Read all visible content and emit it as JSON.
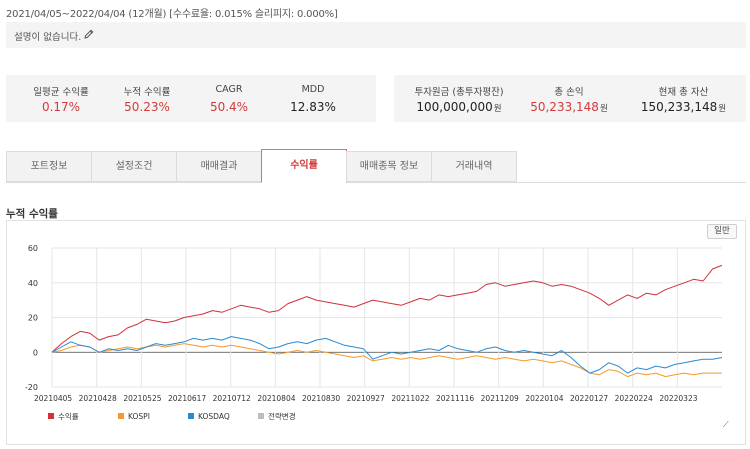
{
  "header": {
    "period": "2021/04/05~2022/04/04 (12개월) [수수료율: 0.015% 슬리피지: 0.000%]",
    "description": "설명이 없습니다.",
    "edit_icon": "pencil-icon"
  },
  "stats_left": [
    {
      "label": "일평균 수익률",
      "value": "0.17%",
      "color": "#d33a3a"
    },
    {
      "label": "누적 수익률",
      "value": "50.23%",
      "color": "#d33a3a"
    },
    {
      "label": "CAGR",
      "value": "50.4%",
      "color": "#d33a3a"
    },
    {
      "label": "MDD",
      "value": "12.83%",
      "color": "#222222"
    }
  ],
  "stats_right": [
    {
      "label": "투자원금 (총투자평잔)",
      "value": "100,000,000",
      "unit": "원",
      "color": "#222222"
    },
    {
      "label": "총 손익",
      "value": "50,233,148",
      "unit": "원",
      "color": "#d33a3a"
    },
    {
      "label": "현재 총 자산",
      "value": "150,233,148",
      "unit": "원",
      "color": "#222222"
    }
  ],
  "tabs": [
    {
      "label": "포트정보",
      "active": false
    },
    {
      "label": "설정조건",
      "active": false
    },
    {
      "label": "매매결과",
      "active": false
    },
    {
      "label": "수익률",
      "active": true
    },
    {
      "label": "매매종목 정보",
      "active": false
    },
    {
      "label": "거래내역",
      "active": false
    }
  ],
  "section_title": "누적 수익률",
  "reset_button": "일반",
  "chart_data": {
    "type": "line",
    "title": "",
    "xlabel": "",
    "ylabel": "",
    "ylim": [
      -20,
      60
    ],
    "yticks": [
      60,
      40,
      20,
      0,
      -20
    ],
    "x_tick_labels": [
      "20210405",
      "20210428",
      "20210525",
      "20210617",
      "20210712",
      "20210804",
      "20210830",
      "20210927",
      "20211022",
      "20211116",
      "20211209",
      "20220104",
      "20220127",
      "20220224",
      "20220323"
    ],
    "grid": true,
    "legend_position": "bottom-left",
    "series": [
      {
        "name": "수익률",
        "color": "#d0313b",
        "values": [
          0,
          5,
          9,
          12,
          11,
          7,
          9,
          10,
          14,
          16,
          19,
          18,
          17,
          18,
          20,
          21,
          22,
          24,
          23,
          25,
          27,
          26,
          25,
          23,
          24,
          28,
          30,
          32,
          30,
          29,
          28,
          27,
          26,
          28,
          30,
          29,
          28,
          27,
          29,
          31,
          30,
          33,
          32,
          33,
          34,
          35,
          39,
          40,
          38,
          39,
          40,
          41,
          40,
          38,
          39,
          38,
          36,
          34,
          31,
          27,
          30,
          33,
          31,
          34,
          33,
          36,
          38,
          40,
          42,
          41,
          48,
          50
        ]
      },
      {
        "name": "KOSPI",
        "color": "#f39a2d",
        "values": [
          0,
          1,
          3,
          4,
          3,
          0,
          1,
          2,
          3,
          2,
          3,
          4,
          3,
          4,
          5,
          4,
          3,
          4,
          3,
          4,
          3,
          2,
          1,
          0,
          -1,
          0,
          1,
          0,
          1,
          0,
          -1,
          -2,
          -3,
          -2,
          -5,
          -4,
          -3,
          -4,
          -3,
          -4,
          -3,
          -2,
          -3,
          -4,
          -3,
          -2,
          -3,
          -4,
          -3,
          -4,
          -5,
          -4,
          -5,
          -6,
          -5,
          -7,
          -9,
          -12,
          -13,
          -10,
          -11,
          -14,
          -12,
          -13,
          -12,
          -14,
          -13,
          -12,
          -13,
          -12,
          -12,
          -12
        ]
      },
      {
        "name": "KOSDAQ",
        "color": "#2b8bd0",
        "values": [
          0,
          3,
          6,
          4,
          3,
          0,
          2,
          1,
          2,
          1,
          3,
          5,
          4,
          5,
          6,
          8,
          7,
          8,
          7,
          9,
          8,
          7,
          5,
          2,
          3,
          5,
          6,
          5,
          7,
          8,
          6,
          4,
          3,
          2,
          -4,
          -2,
          0,
          -1,
          0,
          1,
          2,
          1,
          4,
          2,
          1,
          0,
          2,
          3,
          1,
          0,
          1,
          0,
          -1,
          -2,
          1,
          -3,
          -8,
          -12,
          -10,
          -6,
          -8,
          -12,
          -9,
          -10,
          -8,
          -9,
          -7,
          -6,
          -5,
          -4,
          -4,
          -3
        ]
      },
      {
        "name": "전략변경",
        "color": "#bcbcbc",
        "values": []
      }
    ]
  }
}
